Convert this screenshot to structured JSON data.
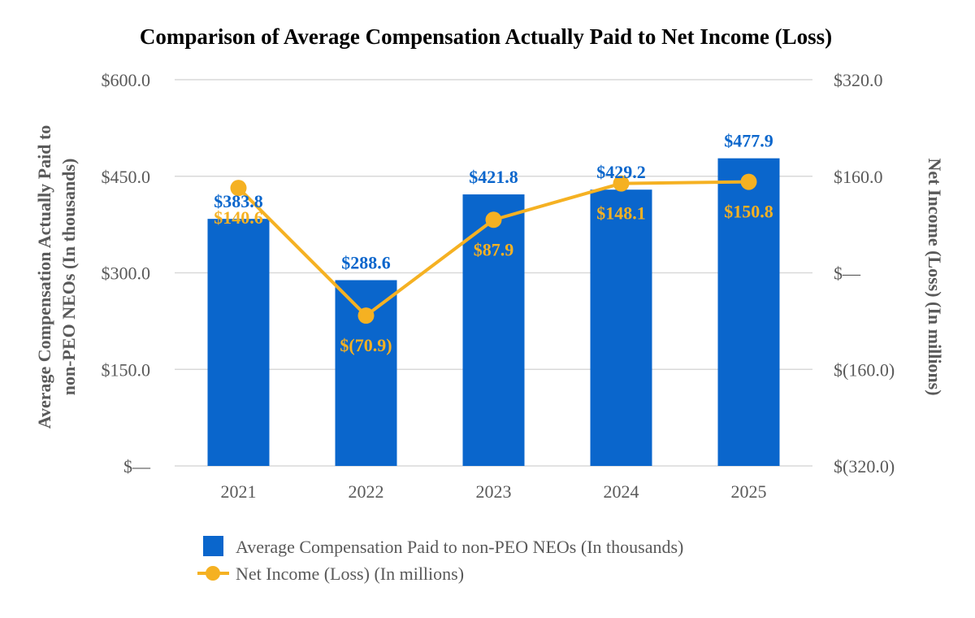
{
  "chart_data": {
    "type": "bar",
    "title": "Comparison of Average Compensation Actually Paid to Net Income (Loss)",
    "categories": [
      "2021",
      "2022",
      "2023",
      "2024",
      "2025"
    ],
    "series": [
      {
        "name": "Average Compensation Paid to non-PEO NEOs (In thousands)",
        "kind": "bar",
        "axis": "left",
        "color": "#0a66cc",
        "values": [
          383.8,
          288.6,
          421.8,
          429.2,
          477.9
        ],
        "labels": [
          "$383.8",
          "$288.6",
          "$421.8",
          "$429.2",
          "$477.9"
        ]
      },
      {
        "name": "Net Income (Loss) (In millions)",
        "kind": "line",
        "axis": "right",
        "color": "#f5b122",
        "values": [
          140.6,
          -70.9,
          87.9,
          148.1,
          150.8
        ],
        "labels": [
          "$140.6",
          "$(70.9)",
          "$87.9",
          "$148.1",
          "$150.8"
        ]
      }
    ],
    "y_left": {
      "label": "Average Compensation Actually Paid to non-PEO NEOs (In thousands)",
      "label_lines": [
        "Average Compensation Actually Paid to",
        "non-PEO NEOs (In thousands)"
      ],
      "range": [
        0,
        600
      ],
      "ticks": [
        0,
        150,
        300,
        450,
        600
      ],
      "tick_labels": [
        "$—",
        "$150.0",
        "$300.0",
        "$450.0",
        "$600.0"
      ]
    },
    "y_right": {
      "label": "Net Income (Loss) (In millions)",
      "range": [
        -320,
        320
      ],
      "ticks": [
        -320,
        -160,
        0,
        160,
        320
      ],
      "tick_labels": [
        "$(320.0)",
        "$(160.0)",
        "$—",
        "$160.0",
        "$320.0"
      ]
    },
    "grid": true,
    "legend_position": "bottom"
  }
}
